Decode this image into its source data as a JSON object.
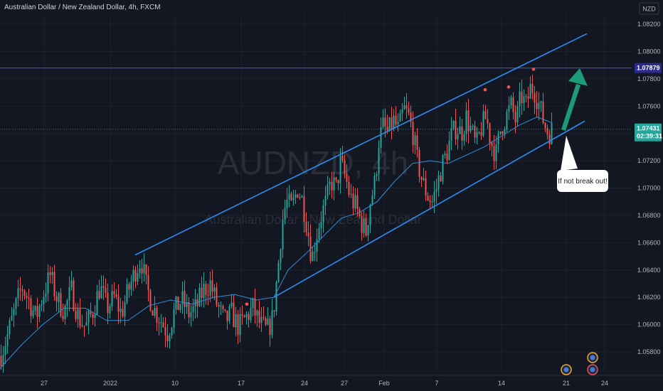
{
  "header": {
    "title": "Australian Dollar / New Zealand Dollar, 4h, FXCM",
    "currency": "NZD"
  },
  "watermark": {
    "symbol": "AUDNZD, 4h",
    "name": "Australian Dollar / New Zealand Dollar"
  },
  "annotation": {
    "text": "If not break out!"
  },
  "colors": {
    "background": "#131722",
    "up": "#26a69a",
    "down": "#ef5350",
    "ma": "#2f8fd8",
    "channel": "#2d8cf0",
    "resistance": "#3f3fbf",
    "current_line": "#26a69a",
    "arrow": "#1d9a76",
    "marker": "#ef5350"
  },
  "chart_data": {
    "type": "candlestick",
    "title": "Australian Dollar / New Zealand Dollar, 4h, FXCM",
    "x_ticks": [
      "27",
      "2022",
      "10",
      "17",
      "24",
      "27",
      "Feb",
      "7",
      "14",
      "21",
      "24"
    ],
    "y_ticks": [
      "1.08200",
      "1.08000",
      "1.07800",
      "1.07600",
      "1.07400",
      "1.07200",
      "1.07000",
      "1.06800",
      "1.06600",
      "1.06400",
      "1.06200",
      "1.06000",
      "1.05800"
    ],
    "ylim": [
      1.057,
      1.083
    ],
    "resistance_level": 1.07879,
    "resistance_label": "1.07879",
    "last_price": 1.07431,
    "last_price_label": "1.07431",
    "countdown": "02:39:31",
    "close_path": [
      [
        0,
        1.0577
      ],
      [
        10,
        1.0592
      ],
      [
        20,
        1.061
      ],
      [
        30,
        1.0628
      ],
      [
        40,
        1.0618
      ],
      [
        50,
        1.0605
      ],
      [
        60,
        1.0622
      ],
      [
        70,
        1.0636
      ],
      [
        80,
        1.0618
      ],
      [
        90,
        1.061
      ],
      [
        100,
        1.0625
      ],
      [
        110,
        1.0605
      ],
      [
        120,
        1.0598
      ],
      [
        130,
        1.061
      ],
      [
        140,
        1.0628
      ],
      [
        150,
        1.0612
      ],
      [
        160,
        1.062
      ],
      [
        170,
        1.0608
      ],
      [
        180,
        1.0625
      ],
      [
        190,
        1.064
      ],
      [
        198,
        1.0648
      ],
      [
        205,
        1.0628
      ],
      [
        215,
        1.0612
      ],
      [
        225,
        1.0604
      ],
      [
        235,
        1.0594
      ],
      [
        245,
        1.061
      ],
      [
        255,
        1.0618
      ],
      [
        265,
        1.0608
      ],
      [
        275,
        1.0612
      ],
      [
        285,
        1.0625
      ],
      [
        295,
        1.063
      ],
      [
        305,
        1.0614
      ],
      [
        315,
        1.0602
      ],
      [
        325,
        1.0608
      ],
      [
        335,
        1.0598
      ],
      [
        345,
        1.0605
      ],
      [
        355,
        1.0612
      ],
      [
        365,
        1.06
      ],
      [
        375,
        1.0595
      ],
      [
        383,
        1.0605
      ],
      [
        390,
        1.064
      ],
      [
        396,
        1.0675
      ],
      [
        402,
        1.069
      ],
      [
        410,
        1.0685
      ],
      [
        418,
        1.07
      ],
      [
        425,
        1.069
      ],
      [
        432,
        1.067
      ],
      [
        438,
        1.0648
      ],
      [
        444,
        1.0665
      ],
      [
        450,
        1.0678
      ],
      [
        458,
        1.069
      ],
      [
        465,
        1.0705
      ],
      [
        472,
        1.07
      ],
      [
        478,
        1.0718
      ],
      [
        485,
        1.0708
      ],
      [
        492,
        1.0693
      ],
      [
        500,
        1.0686
      ],
      [
        507,
        1.0675
      ],
      [
        514,
        1.0668
      ],
      [
        520,
        1.069
      ],
      [
        527,
        1.0705
      ],
      [
        532,
        1.0735
      ],
      [
        538,
        1.0745
      ],
      [
        545,
        1.074
      ],
      [
        552,
        1.075
      ],
      [
        560,
        1.0742
      ],
      [
        567,
        1.0758
      ],
      [
        574,
        1.0752
      ],
      [
        580,
        1.074
      ],
      [
        586,
        1.072
      ],
      [
        593,
        1.0705
      ],
      [
        600,
        1.0695
      ],
      [
        607,
        1.069
      ],
      [
        613,
        1.07
      ],
      [
        620,
        1.0715
      ],
      [
        627,
        1.0725
      ],
      [
        634,
        1.0738
      ],
      [
        641,
        1.0745
      ],
      [
        648,
        1.074
      ],
      [
        655,
        1.0752
      ],
      [
        662,
        1.0742
      ],
      [
        669,
        1.073
      ],
      [
        676,
        1.0744
      ],
      [
        683,
        1.0752
      ],
      [
        690,
        1.0733
      ],
      [
        697,
        1.0725
      ],
      [
        704,
        1.0745
      ],
      [
        711,
        1.0752
      ],
      [
        718,
        1.076
      ],
      [
        725,
        1.0748
      ],
      [
        732,
        1.0768
      ],
      [
        739,
        1.076
      ],
      [
        746,
        1.0775
      ],
      [
        752,
        1.077
      ],
      [
        758,
        1.076
      ],
      [
        764,
        1.0748
      ],
      [
        770,
        1.074
      ],
      [
        776,
        1.0743
      ]
    ],
    "ma_path": [
      [
        0,
        1.0568
      ],
      [
        30,
        1.0585
      ],
      [
        60,
        1.06
      ],
      [
        90,
        1.0612
      ],
      [
        120,
        1.0612
      ],
      [
        150,
        1.0603
      ],
      [
        180,
        1.0603
      ],
      [
        210,
        1.0614
      ],
      [
        240,
        1.0618
      ],
      [
        270,
        1.0615
      ],
      [
        300,
        1.062
      ],
      [
        330,
        1.0622
      ],
      [
        360,
        1.0618
      ],
      [
        385,
        1.062
      ],
      [
        405,
        1.064
      ],
      [
        430,
        1.0652
      ],
      [
        455,
        1.0665
      ],
      [
        480,
        1.0678
      ],
      [
        505,
        1.0682
      ],
      [
        530,
        1.069
      ],
      [
        555,
        1.0705
      ],
      [
        580,
        1.0718
      ],
      [
        605,
        1.072
      ],
      [
        630,
        1.0718
      ],
      [
        655,
        1.0724
      ],
      [
        680,
        1.073
      ],
      [
        705,
        1.0738
      ],
      [
        730,
        1.0746
      ],
      [
        755,
        1.0752
      ],
      [
        775,
        1.0748
      ]
    ],
    "channel_upper": [
      [
        190,
        1.0651
      ],
      [
        825,
        1.0813
      ]
    ],
    "channel_lower": [
      [
        385,
        1.062
      ],
      [
        822,
        1.0749
      ]
    ],
    "markers": [
      [
        347,
        1.0615
      ],
      [
        682,
        1.0772
      ],
      [
        715,
        1.0774
      ],
      [
        750,
        1.0787
      ]
    ]
  }
}
